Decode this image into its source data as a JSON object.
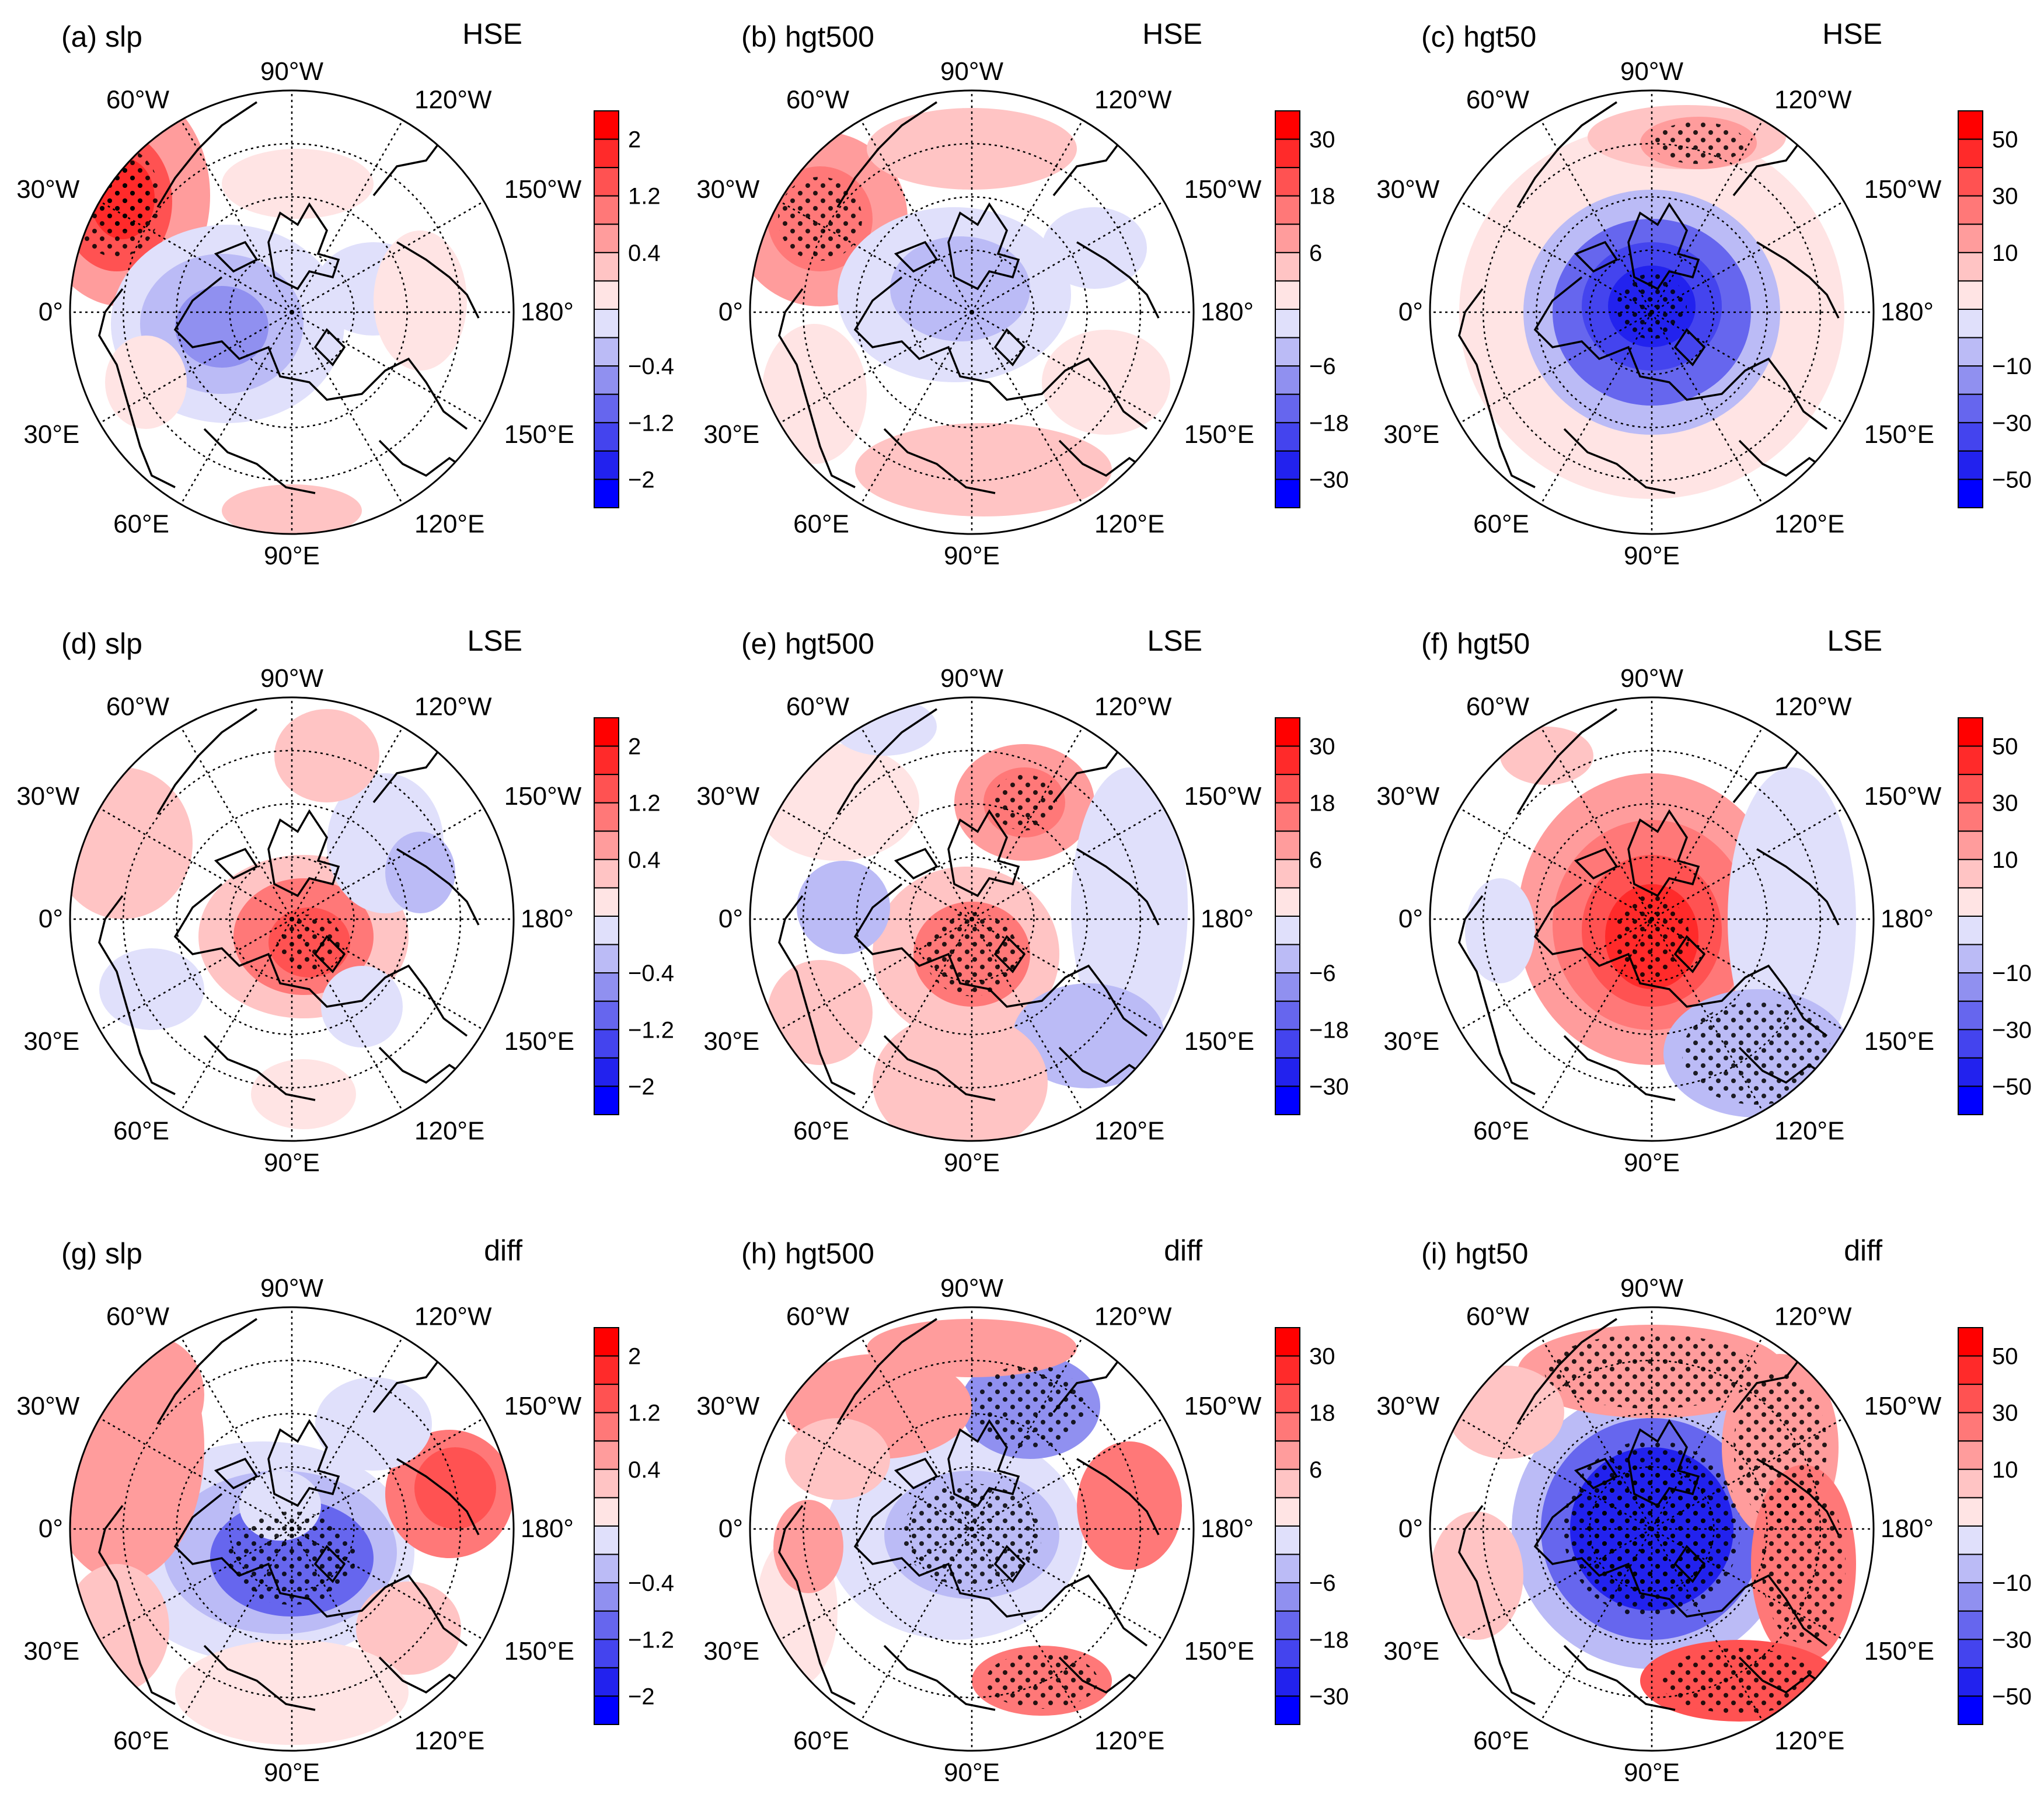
{
  "figure_type": "polar stereographic composite maps",
  "chart_data": {
    "type": "heatmap",
    "projection": "north-polar stereographic",
    "grid": "dotted graticule, longitude every 30 degrees, latitude circles",
    "longitude_labels": [
      "90°W",
      "120°W",
      "150°W",
      "180°",
      "150°E",
      "120°E",
      "90°E",
      "60°E",
      "30°E",
      "0°",
      "30°W",
      "60°W"
    ],
    "significance_marker": "stippling",
    "colormap": {
      "blue_to_red": [
        "#0000ff",
        "#2222ee",
        "#4444ee",
        "#6666ee",
        "#9090f0",
        "#bbbbf6",
        "#e0e0fb",
        "#ffffff",
        "#ffe4e4",
        "#ffc4c4",
        "#ff9c9c",
        "#ff7878",
        "#ff5252",
        "#ff2a2a",
        "#ff0000"
      ]
    },
    "colorbars": {
      "slp": {
        "ticks": [
          "2",
          "1.2",
          "0.4",
          "−0.4",
          "−1.2",
          "−2"
        ]
      },
      "hgt500": {
        "ticks": [
          "30",
          "18",
          "6",
          "−6",
          "−18",
          "−30"
        ]
      },
      "hgt50": {
        "ticks": [
          "50",
          "30",
          "10",
          "−10",
          "−30",
          "−50"
        ]
      }
    },
    "panels": [
      {
        "id": "a",
        "label": "(a) slp",
        "variable": "slp",
        "case": "HSE",
        "pattern": "negative polar cap; positive North Atlantic (30°W)"
      },
      {
        "id": "b",
        "label": "(b) hgt500",
        "variable": "hgt500",
        "case": "HSE",
        "pattern": "weak negative polar; positive North Atlantic"
      },
      {
        "id": "c",
        "label": "(c) hgt50",
        "variable": "hgt50",
        "case": "HSE",
        "pattern": "strong negative polar vortex; positive ring"
      },
      {
        "id": "d",
        "label": "(d) slp",
        "variable": "slp",
        "case": "LSE",
        "pattern": "positive polar; negative North Pacific"
      },
      {
        "id": "e",
        "label": "(e) hgt500",
        "variable": "hgt500",
        "case": "LSE",
        "pattern": "positive polar / Canada; negative Pacific"
      },
      {
        "id": "f",
        "label": "(f) hgt50",
        "variable": "hgt50",
        "case": "LSE",
        "pattern": "strong positive polar; negative Pacific arc"
      },
      {
        "id": "g",
        "label": "(g) slp",
        "variable": "slp",
        "case": "diff",
        "pattern": "negative polar; positive midlatitude Atlantic/Pacific"
      },
      {
        "id": "h",
        "label": "(h) hgt500",
        "variable": "hgt500",
        "case": "diff",
        "pattern": "negative polar; positive midlatitude wave"
      },
      {
        "id": "i",
        "label": "(i) hgt50",
        "variable": "hgt50",
        "case": "diff",
        "pattern": "strong negative polar; positive ring"
      }
    ]
  }
}
